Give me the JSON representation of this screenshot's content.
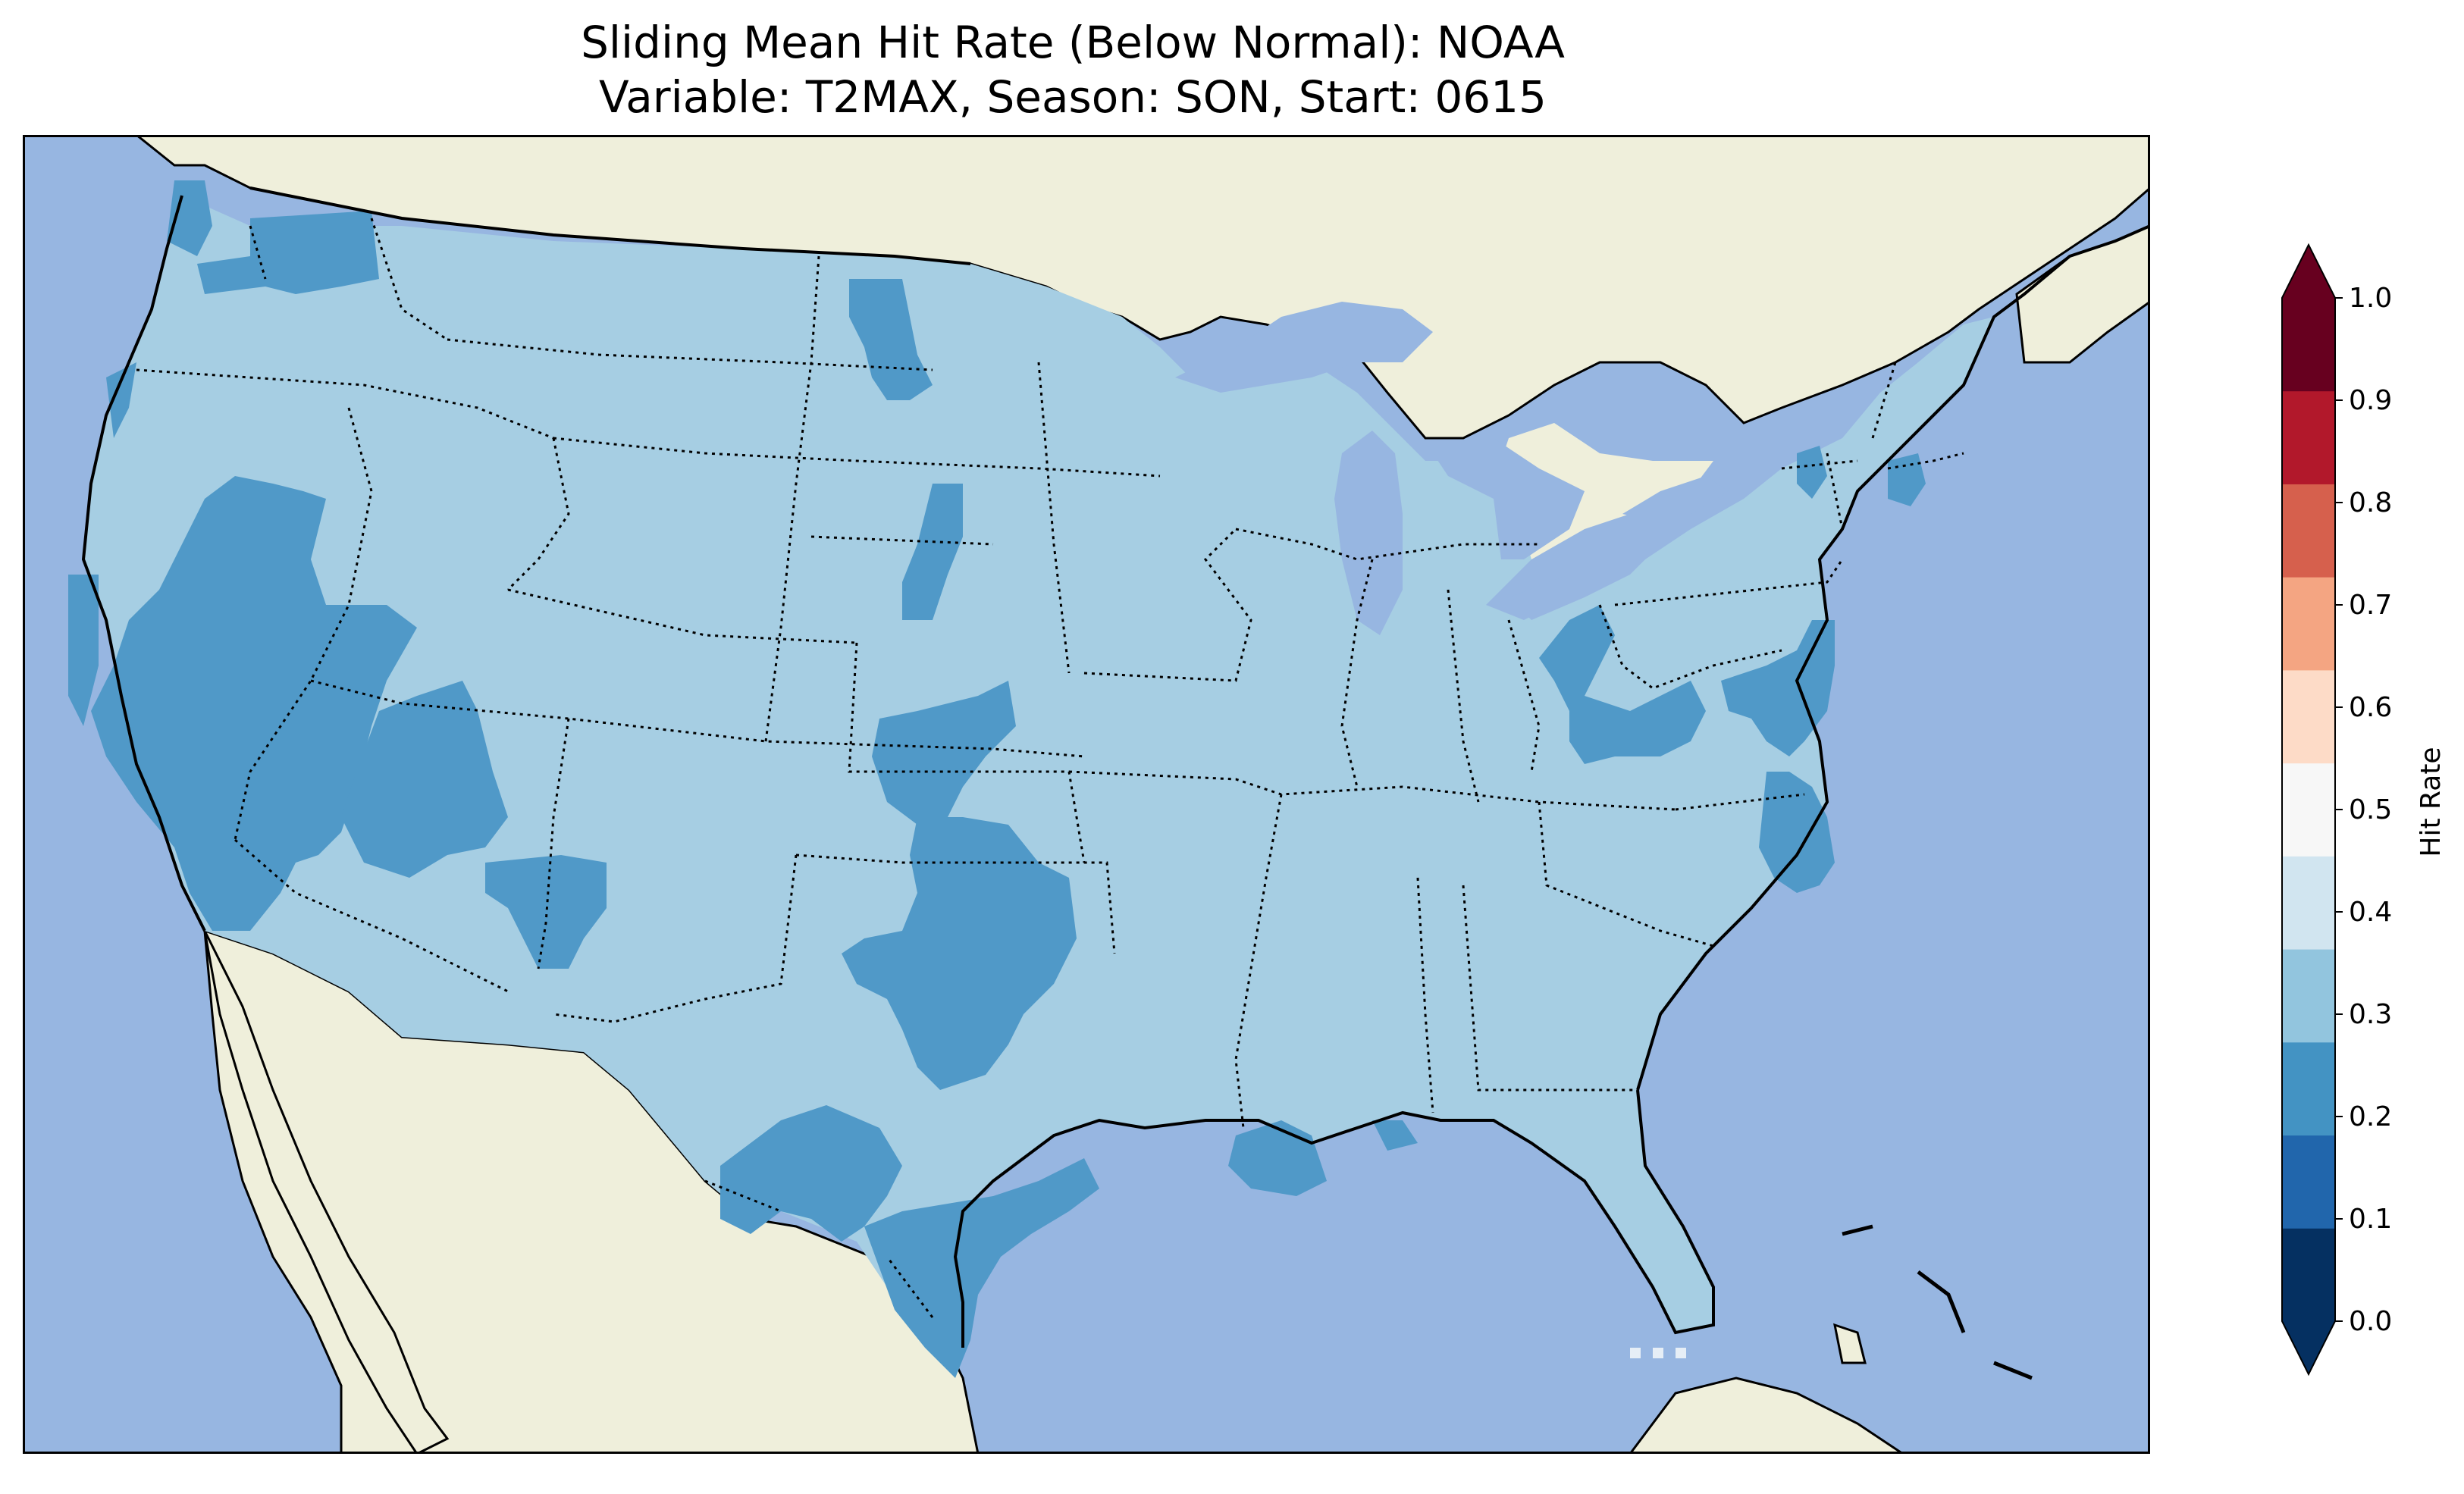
{
  "title": {
    "line1": "Sliding Mean Hit Rate (Below Normal): NOAA",
    "line2": "Variable: T2MAX, Season: SON, Start: 0615"
  },
  "map": {
    "ocean_color": "#97b6e1",
    "land_color": "#efefdb",
    "dominant_class": "0.3–0.4",
    "regions_0_2_to_0_3": [
      "Washington coast",
      "Oregon coast",
      "California",
      "Nevada",
      "Utah",
      "Arizona",
      "New Mexico",
      "North Dakota",
      "Nebraska",
      "Kansas",
      "Oklahoma",
      "Texas",
      "Louisiana coast",
      "Ohio",
      "West Virginia",
      "Maryland",
      "Delaware",
      "New Jersey",
      "Virginia coast",
      "North Carolina coast",
      "Massachusetts",
      "Vermont"
    ]
  },
  "colorbar": {
    "label": "Hit Rate",
    "ticks": [
      "0.0",
      "0.1",
      "0.2",
      "0.3",
      "0.4",
      "0.5",
      "0.6",
      "0.7",
      "0.8",
      "0.9",
      "1.0"
    ],
    "colors": [
      "#053061",
      "#2166ac",
      "#4393c3",
      "#92c5de",
      "#d1e5f0",
      "#f7f7f7",
      "#fddbc7",
      "#f4a582",
      "#d6604d",
      "#b2182b",
      "#67001f"
    ],
    "under_color": "#053061",
    "over_color": "#67001f"
  }
}
